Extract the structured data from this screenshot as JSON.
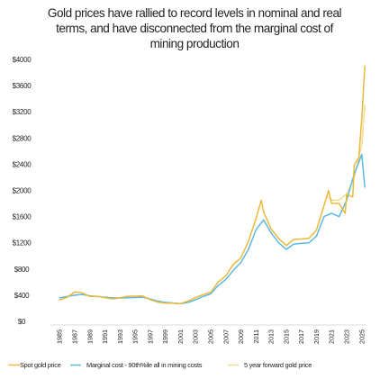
{
  "chart_data": {
    "type": "line",
    "title_lines": [
      "Gold prices have rallied to record levels in nominal and real",
      "terms, and have disconnected from the marginal cost of",
      "mining production"
    ],
    "xlabel": "",
    "ylabel": "",
    "y_ticks": [
      "$0",
      "$400",
      "$800",
      "$1200",
      "$1600",
      "$2000",
      "$2400",
      "$2800",
      "$3200",
      "$3600",
      "$4000"
    ],
    "ylim": [
      0,
      4000
    ],
    "x_ticks": [
      "1985",
      "1987",
      "1989",
      "1991",
      "1993",
      "1995",
      "1997",
      "1999",
      "2001",
      "2003",
      "2005",
      "2007",
      "2009",
      "2011",
      "2013",
      "2015",
      "2017",
      "2019",
      "2021",
      "2023",
      "2025"
    ],
    "xlim": [
      1984.5,
      2025.5
    ],
    "grid": false,
    "legend_position": "bottom",
    "colors": {
      "spot": "#e8b93a",
      "marginal": "#5ab8e4",
      "forward": "#f4dc94"
    },
    "series": [
      {
        "name": "Spot gold price",
        "key": "spot",
        "x": [
          1985,
          1986,
          1987,
          1988,
          1989,
          1990,
          1991,
          1992,
          1993,
          1994,
          1995,
          1996,
          1997,
          1998,
          1999,
          2000,
          2001,
          2002,
          2003,
          2004,
          2005,
          2006,
          2007,
          2008,
          2009,
          2010,
          2011,
          2011.7,
          2012,
          2013,
          2014,
          2015,
          2016,
          2017,
          2018,
          2019,
          2020,
          2020.6,
          2021,
          2022,
          2022.8,
          2023,
          2023.8,
          2024,
          2024.6,
          2025,
          2025.4
        ],
        "y": [
          330,
          368,
          450,
          436,
          381,
          383,
          362,
          343,
          359,
          384,
          384,
          388,
          331,
          294,
          279,
          279,
          271,
          310,
          364,
          409,
          445,
          604,
          695,
          872,
          972,
          1225,
          1572,
          1850,
          1669,
          1411,
          1266,
          1160,
          1251,
          1257,
          1268,
          1393,
          1770,
          2000,
          1800,
          1800,
          1650,
          1940,
          1900,
          2390,
          2500,
          3100,
          3900
        ]
      },
      {
        "name": "Marginal cost - 90th%ile all in mining costs",
        "key": "marginal",
        "x": [
          1985,
          1986,
          1987,
          1988,
          1989,
          1990,
          1991,
          1992,
          1993,
          1994,
          1995,
          1996,
          1997,
          1998,
          1999,
          2000,
          2001,
          2002,
          2003,
          2004,
          2005,
          2006,
          2007,
          2008,
          2009,
          2010,
          2011,
          2012,
          2013,
          2014,
          2015,
          2016,
          2017,
          2018,
          2019,
          2020,
          2021,
          2022,
          2023,
          2024,
          2025,
          2025.4
        ],
        "y": [
          360,
          380,
          400,
          410,
          390,
          380,
          370,
          360,
          355,
          360,
          365,
          370,
          340,
          310,
          290,
          280,
          270,
          290,
          330,
          380,
          420,
          550,
          640,
          780,
          900,
          1100,
          1400,
          1550,
          1350,
          1200,
          1100,
          1180,
          1190,
          1200,
          1300,
          1600,
          1650,
          1600,
          1850,
          2250,
          2550,
          2050
        ]
      },
      {
        "name": "5 year forward gold price",
        "key": "forward",
        "x": [
          2020.5,
          2021,
          2022,
          2023,
          2024,
          2025,
          2025.4
        ],
        "y": [
          1900,
          1850,
          1850,
          1950,
          2200,
          2700,
          3300
        ]
      }
    ]
  }
}
